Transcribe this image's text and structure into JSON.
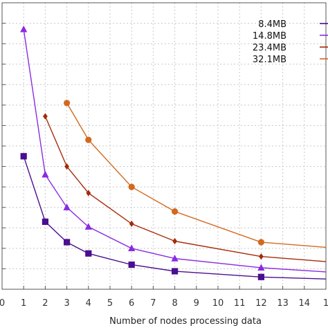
{
  "chart_data": {
    "type": "line",
    "title": "",
    "xlabel": "Number of nodes processing data",
    "ylabel": "",
    "xlim": [
      0,
      15
    ],
    "ylim": [
      0,
      14
    ],
    "x_ticks": [
      "0",
      "1",
      "2",
      "3",
      "4",
      "5",
      "6",
      "7",
      "8",
      "9",
      "10",
      "11",
      "12",
      "13",
      "14",
      "1"
    ],
    "grid": true,
    "legend_position": "top-right",
    "series": [
      {
        "name": "8.4MB",
        "color": "#4a0e8f",
        "marker": "square",
        "x": [
          1,
          2,
          3,
          4,
          6,
          8,
          12,
          15
        ],
        "y": [
          6.5,
          3.3,
          2.3,
          1.75,
          1.2,
          0.88,
          0.6,
          0.5
        ]
      },
      {
        "name": "14.8MB",
        "color": "#8a2be2",
        "marker": "triangle",
        "x": [
          1,
          2,
          3,
          4,
          6,
          8,
          12,
          15
        ],
        "y": [
          12.7,
          5.6,
          4.0,
          3.05,
          2.0,
          1.5,
          1.05,
          0.85
        ]
      },
      {
        "name": "23.4MB",
        "color": "#a52a0a",
        "marker": "diamond",
        "x": [
          2,
          3,
          4,
          6,
          8,
          12,
          15
        ],
        "y": [
          8.45,
          6.0,
          4.7,
          3.2,
          2.35,
          1.6,
          1.35
        ]
      },
      {
        "name": "32.1MB",
        "color": "#d2691e",
        "marker": "circle",
        "x": [
          3,
          4,
          6,
          8,
          12,
          15
        ],
        "y": [
          9.1,
          7.3,
          5.0,
          3.8,
          2.3,
          2.05
        ]
      }
    ]
  }
}
